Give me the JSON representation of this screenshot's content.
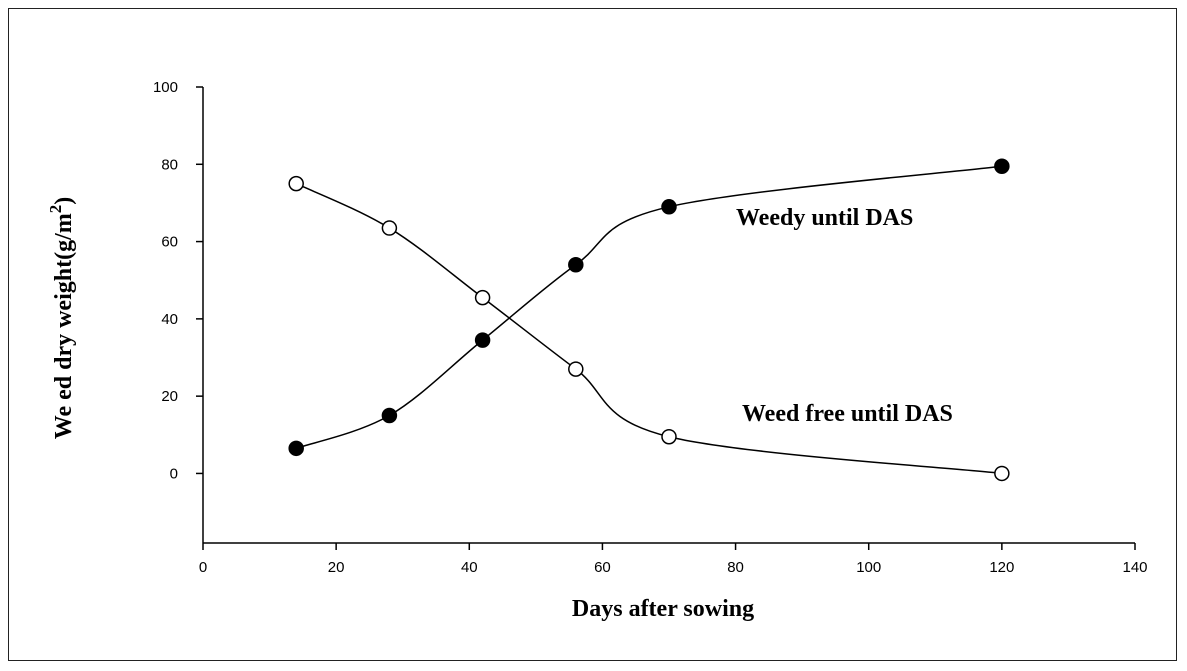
{
  "chart_data": {
    "type": "line",
    "title": "",
    "xlabel": "Days after sowing",
    "ylabel": {
      "main": "We ed dry weight(g/m",
      "sup": "2",
      "end": ")"
    },
    "xlim": [
      0,
      140
    ],
    "ylim": [
      -18,
      100
    ],
    "xticks": [
      "0",
      "20",
      "40",
      "60",
      "80",
      "100",
      "120",
      "140"
    ],
    "yticks": [
      "0",
      "20",
      "40",
      "60",
      "80",
      "100"
    ],
    "grid": false,
    "series": [
      {
        "name": "Weedy until DAS",
        "marker": "filled-circle",
        "color": "#000000",
        "x": [
          14,
          28,
          42,
          56,
          70,
          120
        ],
        "y": [
          6.5,
          15,
          34.5,
          54,
          69,
          79.5
        ]
      },
      {
        "name": "Weed free until DAS",
        "marker": "open-circle",
        "color": "#000000",
        "x": [
          14,
          28,
          42,
          56,
          70,
          120
        ],
        "y": [
          75,
          63.5,
          45.5,
          27,
          9.5,
          0
        ]
      }
    ]
  }
}
